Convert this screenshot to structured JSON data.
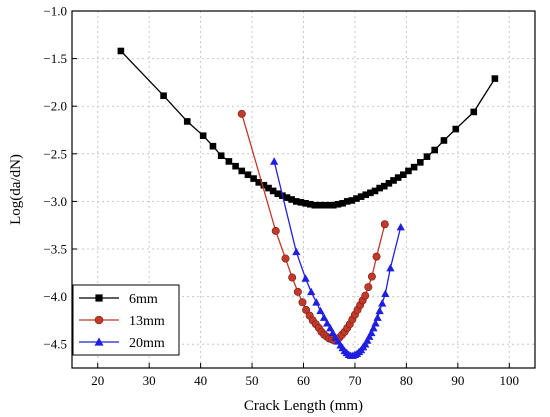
{
  "chart_data": {
    "type": "line",
    "xlabel": "Crack Length (mm)",
    "ylabel": "Log(da/dN)",
    "xlim": [
      15,
      105
    ],
    "ylim": [
      -4.75,
      -1.0
    ],
    "xticks": [
      20,
      30,
      40,
      50,
      60,
      70,
      80,
      90,
      100
    ],
    "yticks": [
      -1.0,
      -1.5,
      -2.0,
      -2.5,
      -3.0,
      -3.5,
      -4.0,
      -4.5
    ],
    "grid": true,
    "legend_position": "bottom-left",
    "series": [
      {
        "name": "6mm",
        "color": "#000000",
        "marker": "square",
        "x": [
          24.5,
          32.8,
          37.4,
          40.5,
          42.4,
          44.0,
          45.5,
          46.8,
          48.0,
          49.2,
          50.3,
          51.3,
          52.3,
          53.2,
          54.1,
          55.0,
          55.9,
          56.8,
          57.7,
          58.6,
          59.5,
          60.4,
          61.3,
          62.2,
          63.1,
          64.0,
          64.9,
          65.8,
          66.7,
          67.6,
          68.5,
          69.4,
          70.3,
          71.2,
          72.1,
          73.0,
          73.9,
          74.8,
          75.7,
          76.6,
          77.5,
          78.4,
          79.4,
          80.4,
          81.5,
          82.7,
          84.0,
          85.5,
          87.3,
          89.6,
          93.1,
          97.2
        ],
        "y": [
          -1.42,
          -1.89,
          -2.16,
          -2.31,
          -2.42,
          -2.52,
          -2.58,
          -2.63,
          -2.68,
          -2.72,
          -2.76,
          -2.8,
          -2.83,
          -2.86,
          -2.89,
          -2.92,
          -2.94,
          -2.96,
          -2.98,
          -3.0,
          -3.01,
          -3.02,
          -3.03,
          -3.04,
          -3.04,
          -3.04,
          -3.04,
          -3.04,
          -3.03,
          -3.02,
          -3.0,
          -2.99,
          -2.97,
          -2.95,
          -2.93,
          -2.91,
          -2.89,
          -2.86,
          -2.84,
          -2.81,
          -2.78,
          -2.75,
          -2.72,
          -2.68,
          -2.64,
          -2.59,
          -2.53,
          -2.46,
          -2.36,
          -2.24,
          -2.06,
          -1.71
        ]
      },
      {
        "name": "13mm",
        "color": "#c0392b",
        "marker": "circle",
        "x": [
          48.0,
          54.6,
          56.5,
          57.8,
          58.9,
          59.8,
          60.5,
          61.2,
          61.8,
          62.4,
          63.0,
          63.5,
          64.0,
          64.5,
          65.0,
          65.5,
          66.0,
          66.5,
          67.0,
          67.5,
          68.0,
          68.5,
          69.0,
          69.5,
          70.0,
          70.5,
          71.0,
          71.5,
          72.0,
          72.6,
          73.3,
          74.2,
          75.8
        ],
        "y": [
          -2.08,
          -3.31,
          -3.6,
          -3.8,
          -3.95,
          -4.06,
          -4.14,
          -4.2,
          -4.25,
          -4.29,
          -4.33,
          -4.37,
          -4.4,
          -4.42,
          -4.44,
          -4.45,
          -4.46,
          -4.45,
          -4.43,
          -4.4,
          -4.37,
          -4.33,
          -4.29,
          -4.24,
          -4.19,
          -4.14,
          -4.09,
          -4.04,
          -3.99,
          -3.9,
          -3.79,
          -3.58,
          -3.24
        ]
      },
      {
        "name": "20mm",
        "color": "#1f1fe0",
        "marker": "triangle",
        "x": [
          54.3,
          58.6,
          60.4,
          61.5,
          62.5,
          63.3,
          64.0,
          64.6,
          65.2,
          65.7,
          66.2,
          66.7,
          67.2,
          67.6,
          68.0,
          68.4,
          68.8,
          69.2,
          69.6,
          70.0,
          70.4,
          70.8,
          71.2,
          71.6,
          72.0,
          72.4,
          72.8,
          73.2,
          73.6,
          74.0,
          74.4,
          74.8,
          75.3,
          75.9,
          76.9,
          78.9
        ],
        "y": [
          -2.58,
          -3.53,
          -3.81,
          -3.95,
          -4.06,
          -4.15,
          -4.22,
          -4.28,
          -4.33,
          -4.38,
          -4.43,
          -4.47,
          -4.51,
          -4.54,
          -4.57,
          -4.59,
          -4.61,
          -4.62,
          -4.62,
          -4.61,
          -4.6,
          -4.58,
          -4.56,
          -4.53,
          -4.5,
          -4.46,
          -4.42,
          -4.38,
          -4.33,
          -4.28,
          -4.22,
          -4.15,
          -4.07,
          -3.97,
          -3.7,
          -3.27
        ]
      }
    ]
  }
}
